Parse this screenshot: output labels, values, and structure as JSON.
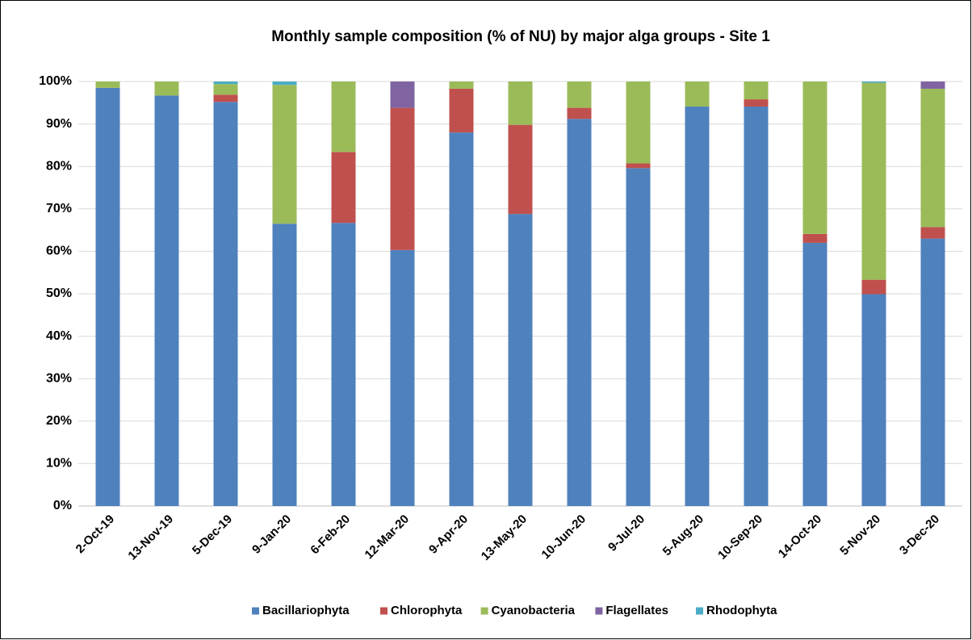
{
  "chart_data": {
    "type": "stacked_bar",
    "title": "Monthly sample composition (% of NU) by major alga groups - Site 1",
    "categories": [
      "2-Oct-19",
      "13-Nov-19",
      "5-Dec-19",
      "9-Jan-20",
      "6-Feb-20",
      "12-Mar-20",
      "9-Apr-20",
      "13-May-20",
      "10-Jun-20",
      "9-Jul-20",
      "5-Aug-20",
      "10-Sep-20",
      "14-Oct-20",
      "5-Nov-20",
      "3-Dec-20"
    ],
    "series": [
      {
        "name": "Bacillariophyta",
        "color": "#4f81bd",
        "values": [
          98.5,
          96.7,
          95.2,
          66.5,
          66.7,
          60.3,
          88,
          68.8,
          91.2,
          79.6,
          94.1,
          94.1,
          62,
          49.9,
          63
        ]
      },
      {
        "name": "Chlorophyta",
        "color": "#c0504d",
        "values": [
          0,
          0,
          1.7,
          0,
          16.7,
          33.5,
          10.3,
          21,
          2.6,
          1.1,
          0,
          1.7,
          2.1,
          3.4,
          2.7
        ]
      },
      {
        "name": "Cyanobacteria",
        "color": "#9bbb59",
        "values": [
          1.5,
          3.3,
          2.5,
          32.7,
          16.6,
          0,
          1.7,
          10.2,
          6.2,
          19.3,
          5.9,
          4.2,
          35.9,
          46.4,
          32.6
        ]
      },
      {
        "name": "Flagellates",
        "color": "#8064a2",
        "values": [
          0,
          0,
          0,
          0,
          0,
          6.2,
          0,
          0,
          0,
          0,
          0,
          0,
          0,
          0,
          1.7
        ]
      },
      {
        "name": "Rhodophyta",
        "color": "#4bacc6",
        "values": [
          0,
          0,
          0.6,
          0.8,
          0,
          0,
          0,
          0,
          0,
          0,
          0,
          0,
          0,
          0.3,
          0
        ]
      }
    ],
    "ylim": [
      0,
      100
    ],
    "yticks": [
      {
        "value": 0,
        "label": "0%"
      },
      {
        "value": 10,
        "label": "10%"
      },
      {
        "value": 20,
        "label": "20%"
      },
      {
        "value": 30,
        "label": "30%"
      },
      {
        "value": 40,
        "label": "40%"
      },
      {
        "value": 50,
        "label": "50%"
      },
      {
        "value": 60,
        "label": "60%"
      },
      {
        "value": 70,
        "label": "70%"
      },
      {
        "value": 80,
        "label": "80%"
      },
      {
        "value": 90,
        "label": "90%"
      },
      {
        "value": 100,
        "label": "100%"
      }
    ],
    "grid": true,
    "legend": "bottom"
  }
}
